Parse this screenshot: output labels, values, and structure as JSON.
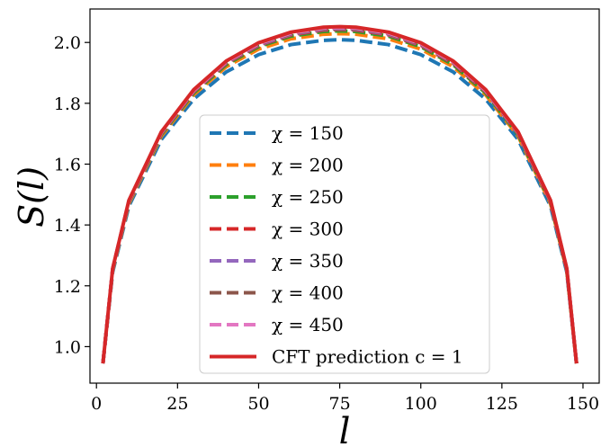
{
  "chart_data": {
    "type": "line",
    "title": "",
    "xlabel": "l",
    "ylabel": "S(l)",
    "xlim": [
      -2,
      155
    ],
    "ylim": [
      0.88,
      2.11
    ],
    "xticks": [
      0,
      25,
      50,
      75,
      100,
      125,
      150
    ],
    "yticks": [
      1.0,
      1.2,
      1.4,
      1.6,
      1.8,
      2.0
    ],
    "xtick_labels": [
      "0",
      "25",
      "50",
      "75",
      "100",
      "125",
      "150"
    ],
    "ytick_labels": [
      "1.0",
      "1.2",
      "1.4",
      "1.6",
      "1.8",
      "2.0"
    ],
    "grid": false,
    "legend_position": "bottom-center",
    "x_range": [
      2,
      148
    ],
    "series": [
      {
        "name": "χ = 150",
        "style": "dashed",
        "color": "#1f77b4",
        "center_value": 2.01,
        "values": [
          [
            2,
            0.945
          ],
          [
            5,
            1.245
          ],
          [
            10,
            1.462
          ],
          [
            20,
            1.681
          ],
          [
            30,
            1.814
          ],
          [
            40,
            1.903
          ],
          [
            50,
            1.96
          ],
          [
            60,
            1.993
          ],
          [
            70,
            2.007
          ],
          [
            75,
            2.009
          ],
          [
            80,
            2.007
          ],
          [
            90,
            1.993
          ],
          [
            100,
            1.96
          ],
          [
            110,
            1.903
          ],
          [
            120,
            1.814
          ],
          [
            130,
            1.681
          ],
          [
            140,
            1.462
          ],
          [
            145,
            1.245
          ],
          [
            148,
            0.945
          ]
        ]
      },
      {
        "name": "χ = 200",
        "style": "dashed",
        "color": "#ff7f0e",
        "center_value": 2.03,
        "values": [
          [
            2,
            0.945
          ],
          [
            5,
            1.25
          ],
          [
            10,
            1.47
          ],
          [
            20,
            1.692
          ],
          [
            30,
            1.828
          ],
          [
            40,
            1.92
          ],
          [
            50,
            1.978
          ],
          [
            60,
            2.012
          ],
          [
            70,
            2.027
          ],
          [
            75,
            2.029
          ],
          [
            80,
            2.027
          ],
          [
            90,
            2.012
          ],
          [
            100,
            1.978
          ],
          [
            110,
            1.92
          ],
          [
            120,
            1.828
          ],
          [
            130,
            1.692
          ],
          [
            140,
            1.47
          ],
          [
            145,
            1.25
          ],
          [
            148,
            0.945
          ]
        ]
      },
      {
        "name": "χ = 250",
        "style": "dashed",
        "color": "#2ca02c",
        "center_value": 2.04,
        "values": [
          [
            2,
            0.945
          ],
          [
            5,
            1.252
          ],
          [
            10,
            1.474
          ],
          [
            20,
            1.697
          ],
          [
            30,
            1.834
          ],
          [
            40,
            1.927
          ],
          [
            50,
            1.986
          ],
          [
            60,
            2.021
          ],
          [
            70,
            2.036
          ],
          [
            75,
            2.038
          ],
          [
            80,
            2.036
          ],
          [
            90,
            2.021
          ],
          [
            100,
            1.986
          ],
          [
            110,
            1.927
          ],
          [
            120,
            1.834
          ],
          [
            130,
            1.697
          ],
          [
            140,
            1.474
          ],
          [
            145,
            1.252
          ],
          [
            148,
            0.945
          ]
        ]
      },
      {
        "name": "χ = 300",
        "style": "dashed",
        "color": "#d62728",
        "center_value": 2.045,
        "values": [
          [
            2,
            0.945
          ],
          [
            5,
            1.254
          ],
          [
            10,
            1.476
          ],
          [
            20,
            1.7
          ],
          [
            30,
            1.838
          ],
          [
            40,
            1.931
          ],
          [
            50,
            1.99
          ],
          [
            60,
            2.025
          ],
          [
            70,
            2.041
          ],
          [
            75,
            2.043
          ],
          [
            80,
            2.041
          ],
          [
            90,
            2.025
          ],
          [
            100,
            1.99
          ],
          [
            110,
            1.931
          ],
          [
            120,
            1.838
          ],
          [
            130,
            1.7
          ],
          [
            140,
            1.476
          ],
          [
            145,
            1.254
          ],
          [
            148,
            0.945
          ]
        ]
      },
      {
        "name": "χ = 350",
        "style": "dashed",
        "color": "#9467bd",
        "center_value": 2.047,
        "values": [
          [
            2,
            0.945
          ],
          [
            5,
            1.255
          ],
          [
            10,
            1.477
          ],
          [
            20,
            1.701
          ],
          [
            30,
            1.84
          ],
          [
            40,
            1.933
          ],
          [
            50,
            1.992
          ],
          [
            60,
            2.027
          ],
          [
            70,
            2.043
          ],
          [
            75,
            2.045
          ],
          [
            80,
            2.043
          ],
          [
            90,
            2.027
          ],
          [
            100,
            1.992
          ],
          [
            110,
            1.933
          ],
          [
            120,
            1.84
          ],
          [
            130,
            1.701
          ],
          [
            140,
            1.477
          ],
          [
            145,
            1.255
          ],
          [
            148,
            0.945
          ]
        ]
      },
      {
        "name": "χ = 400",
        "style": "dashed",
        "color": "#8c564b",
        "center_value": 2.05,
        "values": [
          [
            2,
            0.945
          ],
          [
            5,
            1.255
          ],
          [
            10,
            1.478
          ],
          [
            20,
            1.702
          ],
          [
            30,
            1.841
          ],
          [
            40,
            1.934
          ],
          [
            50,
            1.994
          ],
          [
            60,
            2.029
          ],
          [
            70,
            2.045
          ],
          [
            75,
            2.047
          ],
          [
            80,
            2.045
          ],
          [
            90,
            2.029
          ],
          [
            100,
            1.994
          ],
          [
            110,
            1.934
          ],
          [
            120,
            1.841
          ],
          [
            130,
            1.702
          ],
          [
            140,
            1.478
          ],
          [
            145,
            1.255
          ],
          [
            148,
            0.945
          ]
        ]
      },
      {
        "name": "χ = 450",
        "style": "dashed",
        "color": "#e377c2",
        "center_value": 2.052,
        "values": [
          [
            2,
            0.945
          ],
          [
            5,
            1.256
          ],
          [
            10,
            1.479
          ],
          [
            20,
            1.704
          ],
          [
            30,
            1.842
          ],
          [
            40,
            1.936
          ],
          [
            50,
            1.996
          ],
          [
            60,
            2.031
          ],
          [
            70,
            2.047
          ],
          [
            75,
            2.049
          ],
          [
            80,
            2.047
          ],
          [
            90,
            2.031
          ],
          [
            100,
            1.996
          ],
          [
            110,
            1.936
          ],
          [
            120,
            1.842
          ],
          [
            130,
            1.704
          ],
          [
            140,
            1.479
          ],
          [
            145,
            1.256
          ],
          [
            148,
            0.945
          ]
        ]
      },
      {
        "name": "CFT prediction c = 1",
        "style": "solid",
        "color": "#d62728",
        "center_value": 2.055,
        "values": [
          [
            2,
            0.945
          ],
          [
            5,
            1.257
          ],
          [
            10,
            1.481
          ],
          [
            20,
            1.706
          ],
          [
            30,
            1.845
          ],
          [
            40,
            1.939
          ],
          [
            50,
            1.999
          ],
          [
            60,
            2.034
          ],
          [
            70,
            2.05
          ],
          [
            75,
            2.052
          ],
          [
            80,
            2.05
          ],
          [
            90,
            2.034
          ],
          [
            100,
            1.999
          ],
          [
            110,
            1.939
          ],
          [
            120,
            1.845
          ],
          [
            130,
            1.706
          ],
          [
            140,
            1.481
          ],
          [
            145,
            1.257
          ],
          [
            148,
            0.945
          ]
        ]
      }
    ]
  }
}
